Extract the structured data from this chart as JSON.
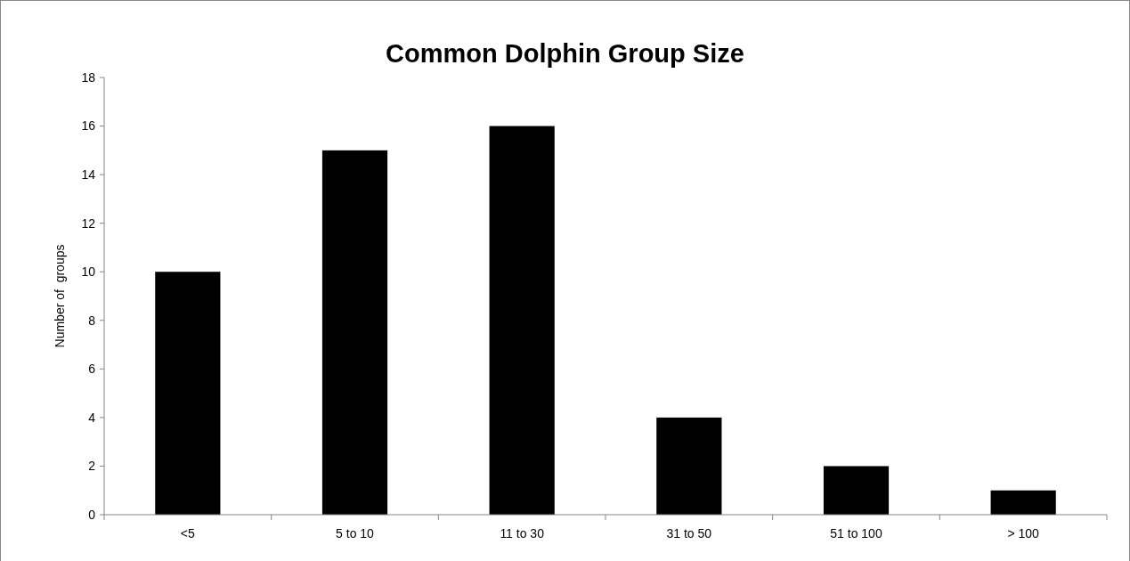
{
  "chart_data": {
    "type": "bar",
    "title": "Common Dolphin Group Size",
    "ylabel": "Number of  groups",
    "categories": [
      "<5",
      "5 to 10",
      "11 to 30",
      "31 to 50",
      "51 to 100",
      "> 100"
    ],
    "values": [
      10,
      15,
      16,
      4,
      2,
      1
    ],
    "color": "#000000",
    "ylim": [
      0,
      18
    ],
    "yticks": [
      0,
      2,
      4,
      6,
      8,
      10,
      12,
      14,
      16,
      18
    ],
    "grid": false
  }
}
